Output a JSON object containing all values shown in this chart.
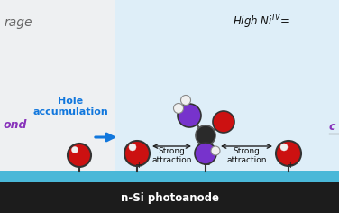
{
  "bg_left_color": "#f0f4f7",
  "bg_right_color": "#deeef8",
  "surface_teal": "#4ab8d8",
  "surface_dark": "#1c1c1c",
  "substrate_label": "n-Si photoanode",
  "text_rage": "rage",
  "text_ond": "ond",
  "text_hole_accum": "Hole\naccumulation",
  "text_high_ni": "High Ni",
  "text_strong": "Strong\nattraction",
  "plus_minus": [
    "+",
    "−",
    "+"
  ],
  "atom_red": "#cc1111",
  "atom_purple": "#7733cc",
  "atom_dark": "#2a2a2a",
  "atom_white": "#f0f0f0",
  "arrow_color": "#1177dd",
  "figw": 3.76,
  "figh": 2.36,
  "dpi": 100
}
